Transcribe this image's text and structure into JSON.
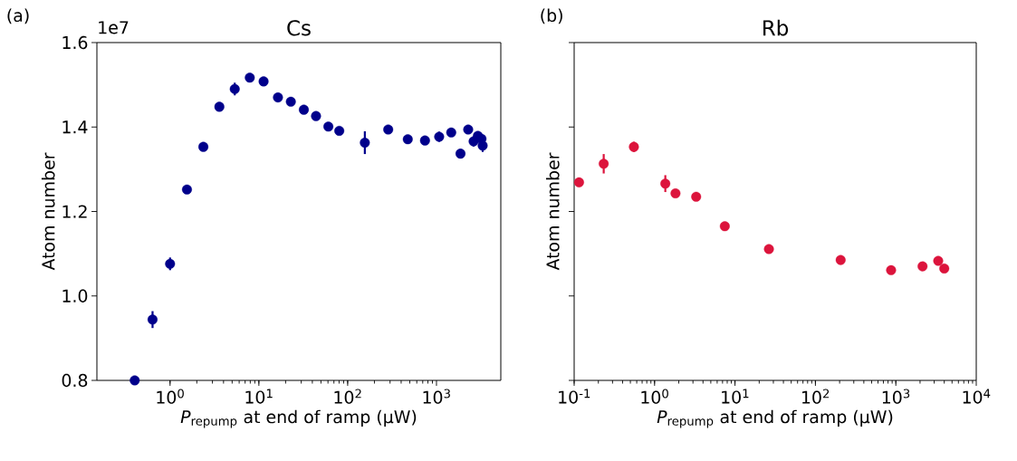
{
  "chart_data": [
    {
      "type": "scatter",
      "title": "Cs",
      "xlabel": "*P*$_{repump}$ at end of ramp (μW)",
      "ylabel": "Atom number",
      "annotations": [
        "(a)",
        "1e7"
      ],
      "color": "#00008b",
      "log": "x",
      "x": [
        0.4,
        0.635,
        1.0,
        1.55,
        2.37,
        3.59,
        5.35,
        7.9,
        11.3,
        16.4,
        22.9,
        32.1,
        44,
        60.6,
        80.4,
        156,
        286,
        475,
        742,
        1072,
        1466,
        1864,
        2275,
        2618,
        2924,
        3212,
        3311
      ],
      "values": [
        0.8,
        0.944,
        1.076,
        1.252,
        1.353,
        1.448,
        1.49,
        1.517,
        1.508,
        1.47,
        1.46,
        1.441,
        1.426,
        1.401,
        1.391,
        1.363,
        1.394,
        1.371,
        1.368,
        1.377,
        1.387,
        1.337,
        1.394,
        1.366,
        1.379,
        1.372,
        1.356
      ],
      "errors": [
        null,
        0.02,
        0.015,
        null,
        null,
        null,
        0.015,
        null,
        null,
        null,
        null,
        null,
        null,
        null,
        null,
        0.027,
        null,
        null,
        null,
        0.012,
        null,
        0.01,
        null,
        0.012,
        null,
        null,
        0.015
      ],
      "xlim": [
        0.15,
        5300
      ],
      "ylim": [
        0.8,
        1.6
      ],
      "xticks": [
        {
          "value": 1,
          "label": "10$^{0}$"
        },
        {
          "value": 10,
          "label": "10$^{1}$"
        },
        {
          "value": 100,
          "label": "10$^{2}$"
        },
        {
          "value": 1000,
          "label": "10$^{3}$"
        }
      ],
      "yticks": [
        {
          "value": 0.8,
          "label": "0.8"
        },
        {
          "value": 1.0,
          "label": "1.0"
        },
        {
          "value": 1.2,
          "label": "1.2"
        },
        {
          "value": 1.4,
          "label": "1.4"
        },
        {
          "value": 1.6,
          "label": "1.6"
        }
      ]
    },
    {
      "type": "scatter",
      "title": "Rb",
      "xlabel": "*P*$_{repump}$ at end of ramp (μW)",
      "ylabel": "Atom number",
      "annotations": [
        "(b)"
      ],
      "color": "#dc143c",
      "log": "x",
      "tick_labels": "x",
      "x": [
        0.115,
        0.233,
        0.553,
        1.36,
        1.82,
        3.29,
        7.47,
        26.4,
        206,
        873,
        2148,
        3365,
        4000
      ],
      "values": [
        1.269,
        1.313,
        1.353,
        1.266,
        1.243,
        1.235,
        1.165,
        1.111,
        1.085,
        1.061,
        1.07,
        1.083,
        1.065
      ],
      "errors": [
        null,
        0.023,
        0.012,
        0.02,
        null,
        null,
        null,
        null,
        0.01,
        null,
        null,
        null,
        null
      ],
      "xlim": [
        0.1,
        10000
      ],
      "ylim": [
        0.8,
        1.6
      ],
      "xticks": [
        {
          "value": 0.1,
          "label": "10$^{-1}$"
        },
        {
          "value": 1,
          "label": "10$^{0}$"
        },
        {
          "value": 10,
          "label": "10$^{1}$"
        },
        {
          "value": 100,
          "label": "10$^{2}$"
        },
        {
          "value": 1000,
          "label": "10$^{3}$"
        },
        {
          "value": 10000,
          "label": "10$^{4}$"
        }
      ],
      "yticks": [
        0.8,
        1.0,
        1.2,
        1.4,
        1.6
      ]
    }
  ]
}
